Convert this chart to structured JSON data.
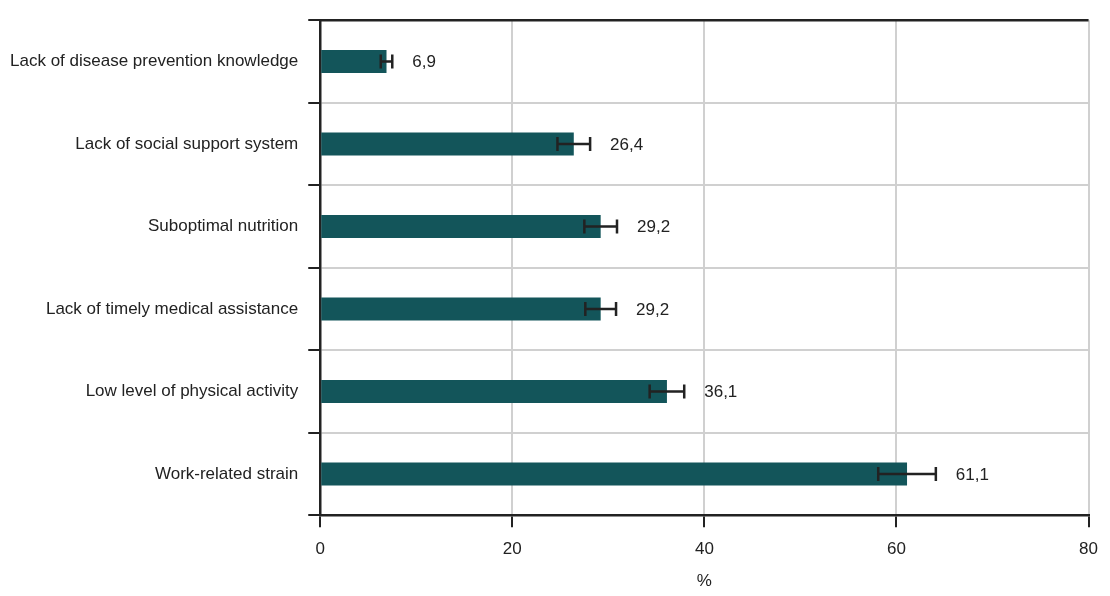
{
  "chart_data": {
    "type": "bar",
    "orientation": "horizontal",
    "xlabel": "%",
    "categories": [
      "Lack of disease prevention knowledge",
      "Lack of social support system",
      "Suboptimal nutrition",
      "Lack of timely medical assistance",
      "Low level of physical activity",
      "Work-related strain"
    ],
    "values": [
      6.9,
      26.4,
      29.2,
      29.2,
      36.1,
      61.1
    ],
    "errors": [
      0.6,
      1.7,
      1.7,
      1.6,
      1.8,
      3.0
    ],
    "value_labels": [
      "6,9",
      "26,4",
      "29,2",
      "29,2",
      "36,1",
      "61,1"
    ],
    "color": "#13555a",
    "xlim": [
      0,
      80
    ],
    "xticks": [
      0,
      20,
      40,
      60,
      80
    ],
    "grid": true
  }
}
